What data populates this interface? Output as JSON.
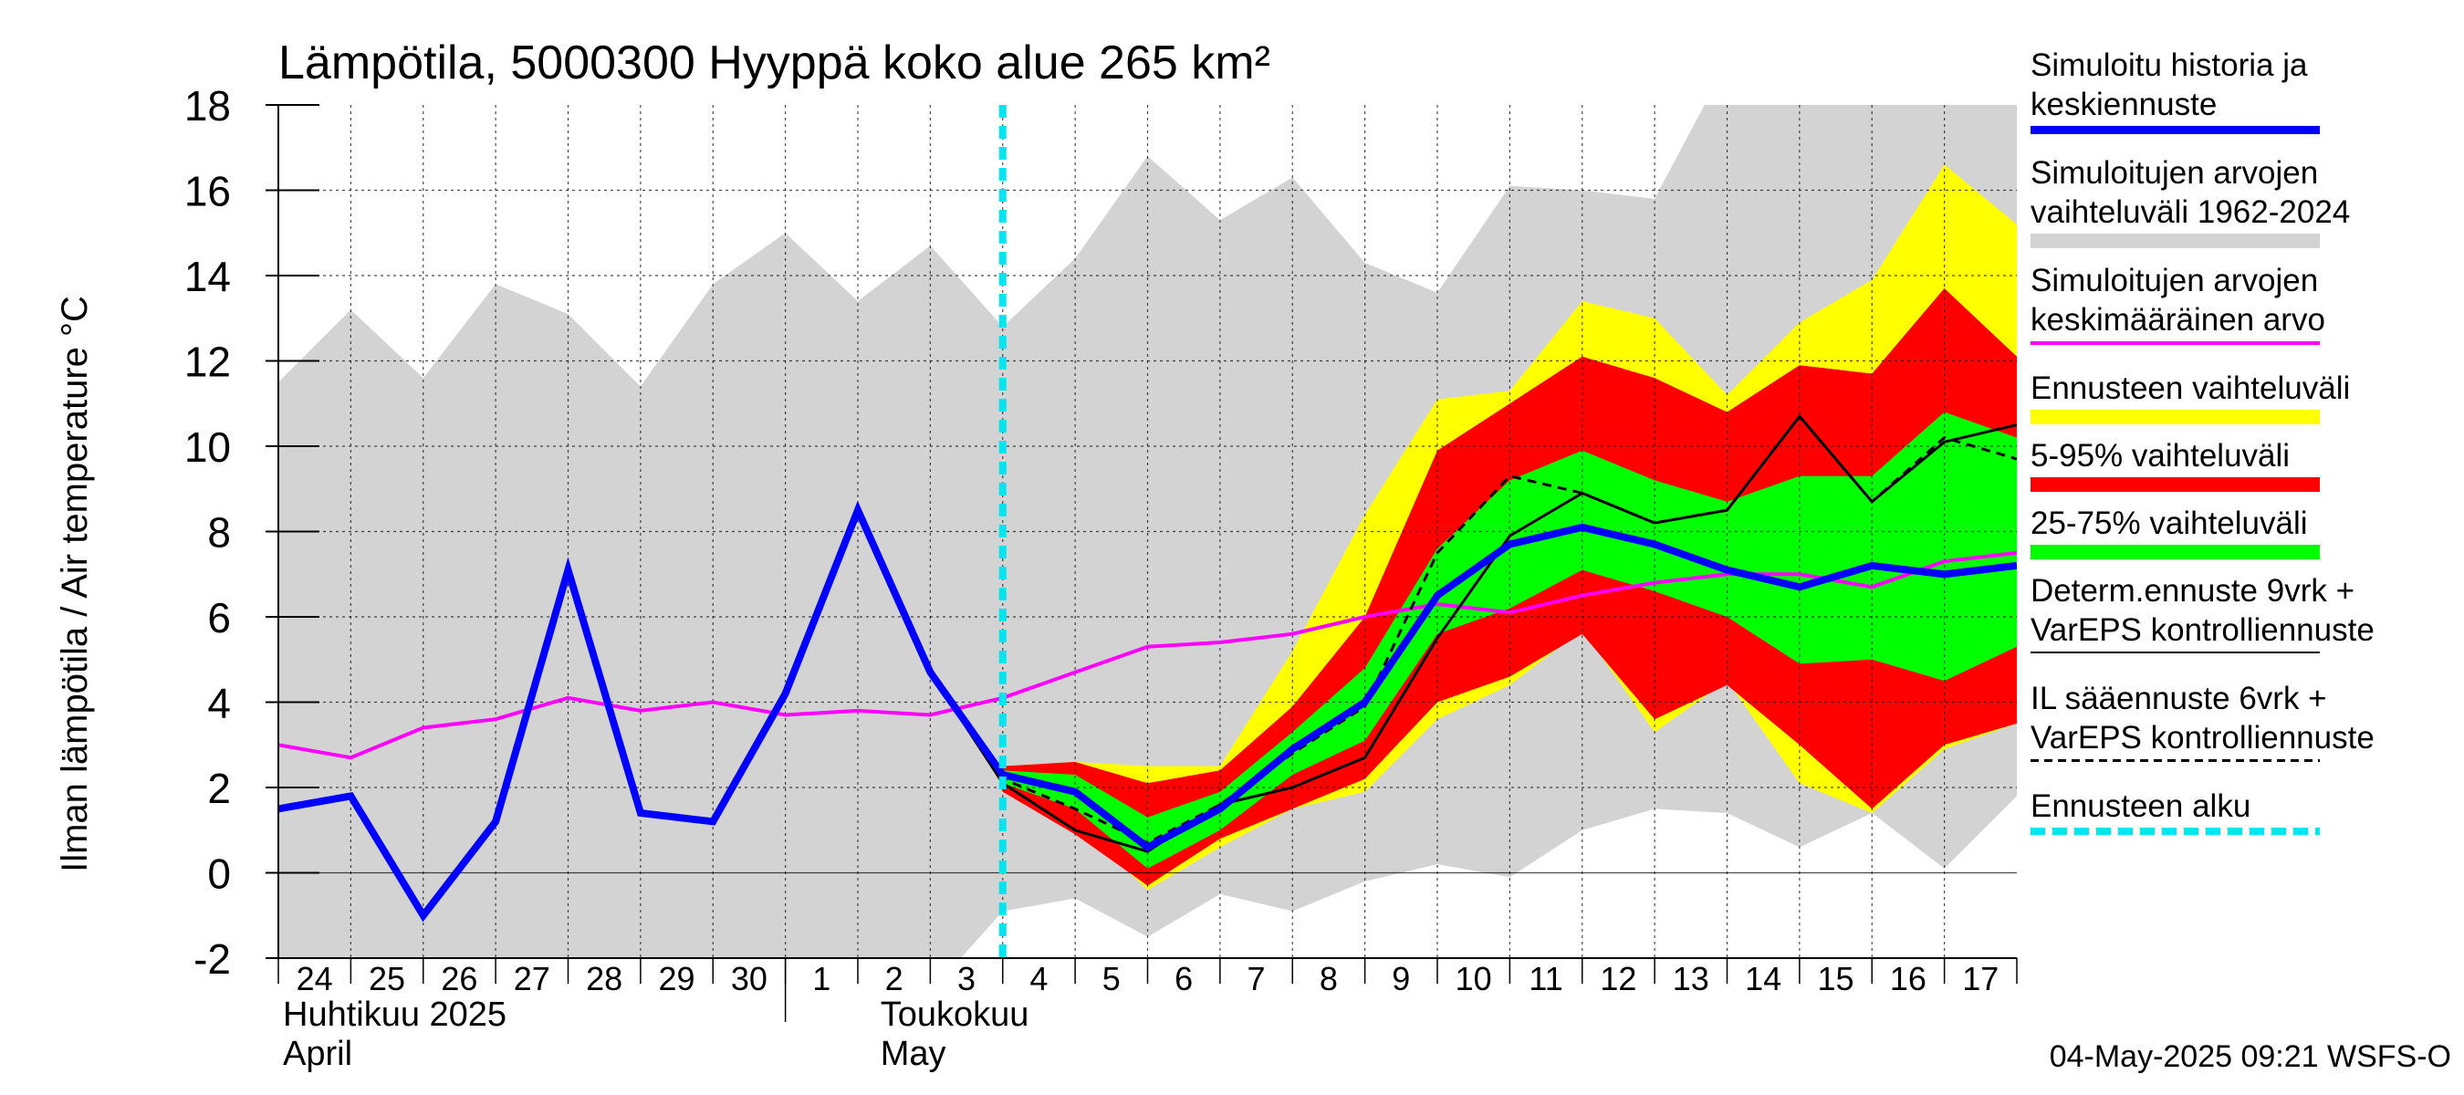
{
  "chart_data": {
    "type": "area",
    "title": "Lämpötila, 5000300 Hyyppä koko alue 265 km²",
    "ylabel": "Ilman lämpötila / Air temperature   °C",
    "ylim": [
      -2,
      18
    ],
    "yticks": [
      -2,
      0,
      2,
      4,
      6,
      8,
      10,
      12,
      14,
      16,
      18
    ],
    "x_start": "24",
    "x": [
      0,
      1,
      2,
      3,
      4,
      5,
      6,
      7,
      8,
      9,
      10,
      11,
      12,
      13,
      14,
      15,
      16,
      17,
      18,
      19,
      20,
      21,
      22,
      23,
      24
    ],
    "x_tick_labels": [
      "24",
      "25",
      "26",
      "27",
      "28",
      "29",
      "30",
      "1",
      "2",
      "3",
      "4",
      "5",
      "6",
      "7",
      "8",
      "9",
      "10",
      "11",
      "12",
      "13",
      "14",
      "15",
      "16",
      "17"
    ],
    "month_labels": [
      {
        "line1": "Huhtikuu  2025",
        "line2": "April",
        "at_day": "24"
      },
      {
        "line1": "Toukokuu",
        "line2": "May",
        "at_day": "2"
      }
    ],
    "forecast_start_x": 10,
    "grid": true,
    "legend_position": "right",
    "series": [
      {
        "name": "Simuloitujen arvojen vaihteluväli 1962-2024",
        "kind": "band",
        "color": "#d3d3d3",
        "x": [
          0,
          1,
          2,
          3,
          4,
          5,
          6,
          7,
          8,
          9,
          10,
          11,
          12,
          13,
          14,
          15,
          16,
          17,
          18,
          19,
          20,
          21,
          22,
          23,
          24
        ],
        "low": [
          -3,
          -3,
          -3,
          -3,
          -3,
          -3,
          -2.4,
          -2.1,
          -2.1,
          -2.8,
          -0.9,
          -0.6,
          -1.5,
          -0.5,
          -0.9,
          -0.2,
          0.2,
          -0.1,
          1.0,
          1.5,
          1.4,
          0.6,
          1.4,
          0.1,
          1.8
        ],
        "high": [
          11.5,
          13.2,
          11.6,
          13.8,
          13.1,
          11.4,
          13.8,
          15.0,
          13.4,
          14.7,
          12.8,
          14.4,
          16.8,
          15.3,
          16.3,
          14.3,
          13.6,
          16.1,
          16.0,
          15.8,
          19,
          19,
          19,
          19,
          19
        ]
      },
      {
        "name": "Ennusteen vaihteluväli",
        "kind": "band",
        "color": "#ffff00",
        "x": [
          10,
          11,
          12,
          13,
          14,
          15,
          16,
          17,
          18,
          19,
          20,
          21,
          22,
          23,
          24
        ],
        "low": [
          1.9,
          1.2,
          -0.4,
          0.6,
          1.5,
          1.9,
          3.6,
          4.4,
          5.7,
          3.3,
          4.5,
          2.1,
          1.4,
          2.9,
          3.5
        ],
        "high": [
          2.5,
          2.6,
          2.5,
          2.5,
          5.2,
          8.4,
          11.1,
          11.3,
          13.4,
          13.0,
          11.2,
          12.9,
          13.9,
          16.6,
          15.2
        ]
      },
      {
        "name": "5-95% vaihteluväli",
        "kind": "band",
        "color": "#ff0000",
        "x": [
          10,
          11,
          12,
          13,
          14,
          15,
          16,
          17,
          18,
          19,
          20,
          21,
          22,
          23,
          24
        ],
        "low": [
          1.9,
          0.9,
          -0.3,
          0.8,
          1.5,
          2.2,
          4.0,
          4.6,
          5.6,
          3.6,
          4.4,
          3.0,
          1.5,
          3.0,
          3.5
        ],
        "high": [
          2.5,
          2.6,
          2.1,
          2.4,
          3.9,
          6.0,
          9.9,
          11.0,
          12.1,
          11.6,
          10.8,
          11.9,
          11.7,
          13.7,
          12.1
        ]
      },
      {
        "name": "25-75% vaihteluväli",
        "kind": "band",
        "color": "#00ff00",
        "x": [
          10,
          11,
          12,
          13,
          14,
          15,
          16,
          17,
          18,
          19,
          20,
          21,
          22,
          23,
          24
        ],
        "low": [
          2.1,
          1.5,
          0.1,
          1.0,
          2.3,
          3.1,
          5.6,
          6.2,
          7.1,
          6.6,
          6.0,
          4.9,
          5.0,
          4.5,
          5.3
        ],
        "high": [
          2.4,
          2.3,
          1.3,
          1.9,
          3.3,
          4.8,
          7.6,
          9.2,
          9.9,
          9.2,
          8.7,
          9.3,
          9.3,
          10.8,
          10.2
        ]
      },
      {
        "name": "Simuloitujen arvojen keskimääräinen arvo",
        "kind": "line",
        "color": "#ff00ff",
        "width": 4,
        "x": [
          0,
          1,
          2,
          3,
          4,
          5,
          6,
          7,
          8,
          9,
          10,
          11,
          12,
          13,
          14,
          15,
          16,
          17,
          18,
          19,
          20,
          21,
          22,
          23,
          24
        ],
        "y": [
          3.0,
          2.7,
          3.4,
          3.6,
          4.1,
          3.8,
          4.0,
          3.7,
          3.8,
          3.7,
          4.1,
          4.7,
          5.3,
          5.4,
          5.6,
          6.0,
          6.3,
          6.1,
          6.5,
          6.8,
          7.0,
          7.0,
          6.7,
          7.3,
          7.5
        ]
      },
      {
        "name": "Determ.ennuste 9vrk + VarEPS kontrolliennuste",
        "kind": "line",
        "color": "#000000",
        "width": 3,
        "x": [
          9,
          10,
          11,
          12,
          13,
          14,
          15,
          16,
          17,
          18,
          19,
          20,
          21,
          22,
          23,
          24
        ],
        "y": [
          4.7,
          2.1,
          1.0,
          0.5,
          1.6,
          2.0,
          2.7,
          5.5,
          7.9,
          8.9,
          8.2,
          8.5,
          10.7,
          8.7,
          10.1,
          10.5
        ]
      },
      {
        "name": "IL sääennuste 6vrk  + VarEPS kontrolliennuste",
        "kind": "line",
        "color": "#000000",
        "width": 3,
        "dash": "10,7",
        "x": [
          9,
          10,
          11,
          12,
          13,
          14,
          15,
          16,
          17,
          18,
          19,
          20,
          21,
          22,
          23,
          24
        ],
        "y": [
          4.7,
          2.2,
          1.5,
          0.7,
          1.6,
          2.8,
          3.9,
          7.5,
          9.3,
          8.9,
          8.2,
          8.5,
          10.7,
          8.7,
          10.2,
          9.7
        ]
      },
      {
        "name": "Simuloitu historia ja keskiennuste",
        "kind": "line",
        "color": "#0000ff",
        "width": 8,
        "x": [
          0,
          1,
          2,
          3,
          4,
          5,
          6,
          7,
          8,
          9,
          10,
          11,
          12,
          13,
          14,
          15,
          16,
          17,
          18,
          19,
          20,
          21,
          22,
          23,
          24
        ],
        "y": [
          1.5,
          1.8,
          -1.0,
          1.2,
          7.1,
          1.4,
          1.2,
          4.2,
          8.5,
          4.7,
          2.3,
          1.9,
          0.6,
          1.5,
          2.9,
          4.0,
          6.5,
          7.7,
          8.1,
          7.7,
          7.1,
          6.7,
          7.2,
          7.0,
          7.2
        ]
      }
    ]
  },
  "legend": [
    {
      "label": "Simuloitu historia ja\nkeskiennuste",
      "color": "#0000ff",
      "style": "thick"
    },
    {
      "label": "Simuloitujen arvojen\nvaihteluväli 1962-2024",
      "color": "#d3d3d3",
      "style": "band"
    },
    {
      "label": "Simuloitujen arvojen\nkeskimääräinen arvo",
      "color": "#ff00ff",
      "style": "line"
    },
    {
      "label": "Ennusteen vaihteluväli",
      "color": "#ffff00",
      "style": "band"
    },
    {
      "label": "5-95% vaihteluväli",
      "color": "#ff0000",
      "style": "band"
    },
    {
      "label": "25-75% vaihteluväli",
      "color": "#00ff00",
      "style": "band"
    },
    {
      "label": "Determ.ennuste 9vrk +\nVarEPS kontrolliennuste",
      "color": "#000000",
      "style": "thin"
    },
    {
      "label": "IL sääennuste 6vrk  +\n  VarEPS kontrolliennuste",
      "color": "#000000",
      "style": "dashed"
    },
    {
      "label": "Ennusteen alku",
      "color": "#00e5ee",
      "style": "dashed-thick"
    }
  ],
  "footer": "04-May-2025 09:21 WSFS-O"
}
